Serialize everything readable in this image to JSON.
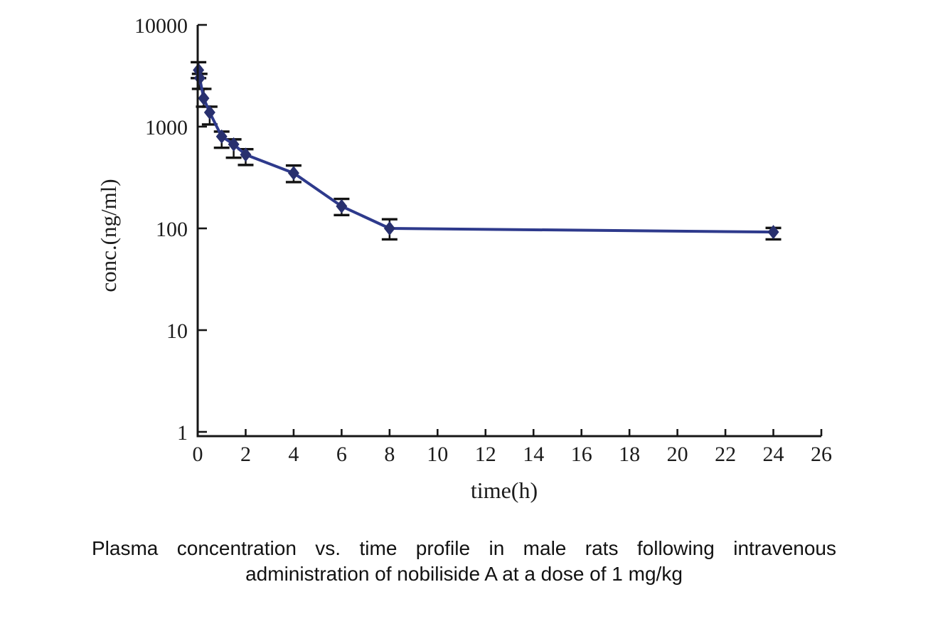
{
  "chart_data": {
    "type": "line",
    "title": "",
    "xlabel": "time(h)",
    "ylabel": "conc.(ng/ml)",
    "x_ticks": [
      0,
      2,
      4,
      6,
      8,
      10,
      12,
      14,
      16,
      18,
      20,
      22,
      24,
      26
    ],
    "y_ticks": [
      1,
      10,
      100,
      1000,
      10000
    ],
    "xlim": [
      0,
      26
    ],
    "ylim": [
      1,
      10000
    ],
    "yscale": "log",
    "grid": false,
    "legend": "none",
    "colors": {
      "axis": "#161616",
      "error_bar": "#121212",
      "line": "#2e3a8c",
      "marker": "#28306e"
    },
    "series": [
      {
        "marker": "diamond",
        "x": [
          0.033,
          0.083,
          0.25,
          0.5,
          1,
          1.5,
          2,
          4,
          6,
          8,
          24
        ],
        "y": [
          3600,
          3000,
          1900,
          1380,
          800,
          670,
          530,
          350,
          165,
          100,
          92
        ],
        "err_up": [
          700,
          300,
          450,
          190,
          95,
          80,
          70,
          65,
          30,
          23,
          9
        ],
        "err_down": [
          600,
          650,
          330,
          330,
          180,
          175,
          110,
          65,
          30,
          22,
          14
        ]
      }
    ]
  },
  "caption": {
    "line1": "Plasma concentration vs. time profile in male rats following intravenous",
    "line2": "administration of nobiliside A at a dose of 1 mg/kg"
  }
}
